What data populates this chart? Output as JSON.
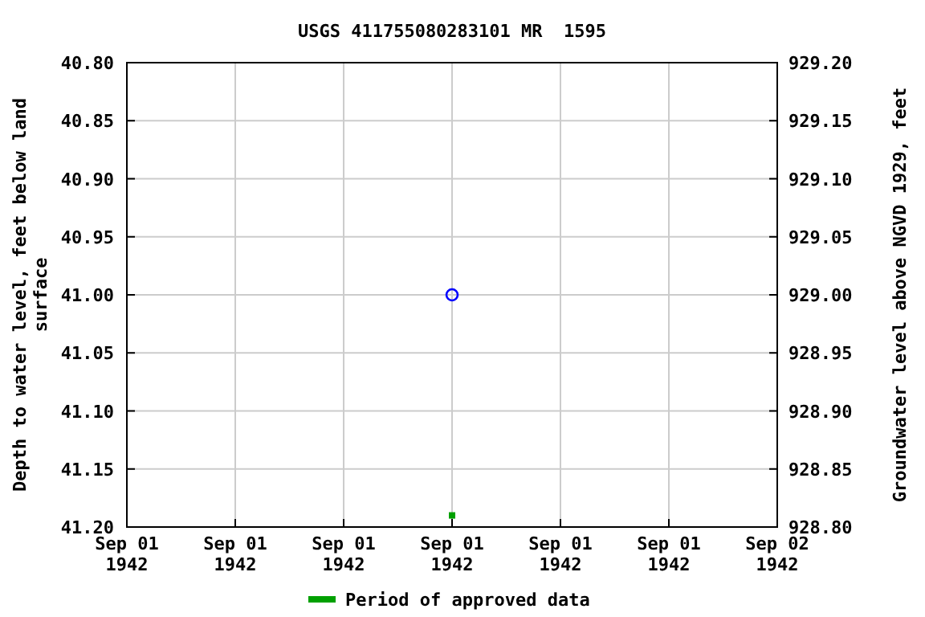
{
  "chart_data": {
    "type": "scatter",
    "title": "USGS 411755080283101 MR  1595",
    "ylabel": "Depth to water level, feet below land surface",
    "y2label": "Groundwater level above NGVD 1929, feet",
    "x": [
      "1942-09-01T12:00"
    ],
    "series": [
      {
        "color": "#0000ff",
        "marker": "circle",
        "values": [
          41.0
        ]
      },
      {
        "name": "Period of approved data",
        "color": "#00a000",
        "marker": "square",
        "x": [
          "1942-09-01T12:00"
        ],
        "values": [
          41.19
        ]
      }
    ],
    "xlim": [
      "1942-09-01T00:00",
      "1942-09-02T00:00"
    ],
    "xticks": [
      {
        "value": "1942-09-01T00:00",
        "label": "Sep 01\n1942"
      },
      {
        "value": "1942-09-01T04:00",
        "label": "Sep 01\n1942"
      },
      {
        "value": "1942-09-01T08:00",
        "label": "Sep 01\n1942"
      },
      {
        "value": "1942-09-01T12:00",
        "label": "Sep 01\n1942"
      },
      {
        "value": "1942-09-01T16:00",
        "label": "Sep 01\n1942"
      },
      {
        "value": "1942-09-01T20:00",
        "label": "Sep 01\n1942"
      },
      {
        "value": "1942-09-02T00:00",
        "label": "Sep 02\n1942"
      }
    ],
    "ylim": [
      41.2,
      40.8
    ],
    "yticks": [
      {
        "value": 40.8,
        "label": "40.80"
      },
      {
        "value": 40.85,
        "label": "40.85"
      },
      {
        "value": 40.9,
        "label": "40.90"
      },
      {
        "value": 40.95,
        "label": "40.95"
      },
      {
        "value": 41.0,
        "label": "41.00"
      },
      {
        "value": 41.05,
        "label": "41.05"
      },
      {
        "value": 41.1,
        "label": "41.10"
      },
      {
        "value": 41.15,
        "label": "41.15"
      },
      {
        "value": 41.2,
        "label": "41.20"
      }
    ],
    "y2lim": [
      928.8,
      929.2
    ],
    "y2ticks": [
      {
        "value": 929.2,
        "label": "929.20"
      },
      {
        "value": 929.15,
        "label": "929.15"
      },
      {
        "value": 929.1,
        "label": "929.10"
      },
      {
        "value": 929.05,
        "label": "929.05"
      },
      {
        "value": 929.0,
        "label": "929.00"
      },
      {
        "value": 928.95,
        "label": "928.95"
      },
      {
        "value": 928.9,
        "label": "928.90"
      },
      {
        "value": 928.85,
        "label": "928.85"
      },
      {
        "value": 928.8,
        "label": "928.80"
      }
    ],
    "grid": true,
    "legend": "bottom"
  }
}
